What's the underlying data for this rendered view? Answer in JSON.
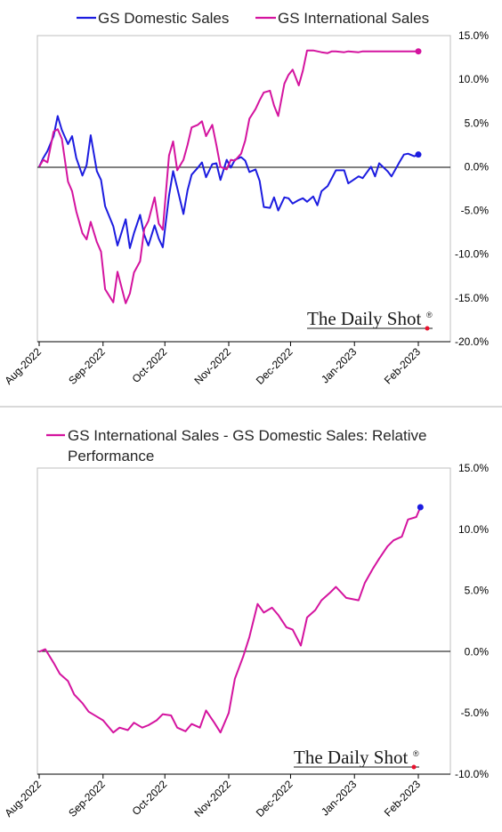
{
  "colors": {
    "domestic": "#1c1ce0",
    "international": "#d4149f",
    "axis": "#000000",
    "watermark_dot": "#e8112d"
  },
  "watermark": "The Daily Shot",
  "watermark_mark": "®",
  "chart_data": [
    {
      "type": "line",
      "legend": [
        "GS Domestic Sales",
        "GS International Sales"
      ],
      "x_ticks": [
        "Aug-2022",
        "Sep-2022",
        "Oct-2022",
        "Nov-2022",
        "Dec-2022",
        "Jan-2023",
        "Feb-2023"
      ],
      "y_ticks": [
        "15.0%",
        "10.0%",
        "5.0%",
        "0.0%",
        "-5.0%",
        "-10.0%",
        "-15.0%",
        "-20.0%"
      ],
      "ylim": [
        -20,
        15
      ],
      "grid": false,
      "legend_position": "top",
      "x": [
        "2022-08-01",
        "2022-08-03",
        "2022-08-05",
        "2022-08-08",
        "2022-08-10",
        "2022-08-12",
        "2022-08-15",
        "2022-08-17",
        "2022-08-19",
        "2022-08-22",
        "2022-08-24",
        "2022-08-26",
        "2022-08-29",
        "2022-08-31",
        "2022-09-02",
        "2022-09-06",
        "2022-09-08",
        "2022-09-12",
        "2022-09-14",
        "2022-09-16",
        "2022-09-19",
        "2022-09-21",
        "2022-09-23",
        "2022-09-26",
        "2022-09-28",
        "2022-09-30",
        "2022-10-03",
        "2022-10-05",
        "2022-10-07",
        "2022-10-10",
        "2022-10-12",
        "2022-10-14",
        "2022-10-17",
        "2022-10-19",
        "2022-10-21",
        "2022-10-24",
        "2022-10-26",
        "2022-10-28",
        "2022-10-31",
        "2022-11-02",
        "2022-11-04",
        "2022-11-07",
        "2022-11-09",
        "2022-11-11",
        "2022-11-14",
        "2022-11-16",
        "2022-11-18",
        "2022-11-21",
        "2022-11-23",
        "2022-11-25",
        "2022-11-28",
        "2022-11-30",
        "2022-12-02",
        "2022-12-05",
        "2022-12-07",
        "2022-12-09",
        "2022-12-12",
        "2022-12-14",
        "2022-12-16",
        "2022-12-19",
        "2022-12-21",
        "2022-12-23",
        "2022-12-27",
        "2022-12-29",
        "2023-01-03",
        "2023-01-05",
        "2023-01-09",
        "2023-01-11",
        "2023-01-13",
        "2023-01-17",
        "2023-01-19",
        "2023-01-23",
        "2023-01-25",
        "2023-01-27",
        "2023-01-30",
        "2023-02-01"
      ],
      "series": [
        {
          "name": "GS Domestic Sales",
          "values": [
            0.0,
            1.0,
            1.8,
            3.5,
            5.8,
            4.2,
            2.6,
            3.5,
            1.0,
            -1.0,
            0.2,
            3.6,
            -0.5,
            -1.5,
            -4.5,
            -6.8,
            -9.0,
            -6.0,
            -9.3,
            -7.6,
            -5.5,
            -7.8,
            -9.0,
            -6.7,
            -8.2,
            -9.2,
            -3.3,
            -0.5,
            -2.4,
            -5.4,
            -2.7,
            -0.9,
            -0.1,
            0.5,
            -1.2,
            0.3,
            0.4,
            -1.5,
            0.8,
            -0.1,
            0.8,
            1.1,
            0.7,
            -0.6,
            -0.3,
            -1.6,
            -4.6,
            -4.7,
            -3.5,
            -5.0,
            -3.5,
            -3.6,
            -4.2,
            -3.8,
            -3.6,
            -4.0,
            -3.4,
            -4.4,
            -2.8,
            -2.2,
            -1.3,
            -0.4,
            -0.4,
            -1.9,
            -1.1,
            -1.3,
            0.0,
            -1.1,
            0.4,
            -0.5,
            -1.1,
            0.6,
            1.4,
            1.5,
            1.2,
            1.4
          ]
        },
        {
          "name": "GS International Sales",
          "values": [
            0.0,
            0.8,
            0.5,
            4.0,
            4.3,
            3.2,
            -1.7,
            -2.8,
            -5.1,
            -7.6,
            -8.3,
            -6.3,
            -8.6,
            -9.7,
            -14.0,
            -15.5,
            -12.0,
            -15.6,
            -14.5,
            -12.1,
            -10.8,
            -7.1,
            -6.2,
            -3.5,
            -6.5,
            -7.2,
            1.3,
            2.9,
            -0.4,
            0.8,
            2.5,
            4.5,
            4.8,
            5.2,
            3.5,
            4.8,
            2.5,
            0.0,
            -0.3,
            0.8,
            0.7,
            1.5,
            3.0,
            5.5,
            6.6,
            7.6,
            8.5,
            8.7,
            7.0,
            5.8,
            9.5,
            10.5,
            11.1,
            9.3,
            11.0,
            13.3,
            13.3,
            13.2,
            13.1,
            13.0,
            13.2,
            13.2,
            13.1,
            13.2,
            13.1,
            13.2,
            13.2,
            13.2,
            13.2,
            13.2,
            13.2,
            13.2,
            13.2,
            13.2,
            13.2,
            13.2
          ]
        }
      ]
    },
    {
      "type": "line",
      "legend": [
        "GS International Sales - GS Domestic Sales:   Relative Performance"
      ],
      "x_ticks": [
        "Aug-2022",
        "Sep-2022",
        "Oct-2022",
        "Nov-2022",
        "Dec-2022",
        "Jan-2023",
        "Feb-2023"
      ],
      "y_ticks": [
        "15.0%",
        "10.0%",
        "5.0%",
        "0.0%",
        "-5.0%",
        "-10.0%"
      ],
      "ylim": [
        -10,
        15
      ],
      "grid": false,
      "legend_position": "top",
      "x": [
        "2022-08-01",
        "2022-08-04",
        "2022-08-08",
        "2022-08-11",
        "2022-08-15",
        "2022-08-18",
        "2022-08-22",
        "2022-08-25",
        "2022-08-29",
        "2022-09-01",
        "2022-09-06",
        "2022-09-09",
        "2022-09-13",
        "2022-09-16",
        "2022-09-20",
        "2022-09-23",
        "2022-09-27",
        "2022-09-30",
        "2022-10-04",
        "2022-10-07",
        "2022-10-11",
        "2022-10-14",
        "2022-10-18",
        "2022-10-21",
        "2022-10-25",
        "2022-10-28",
        "2022-11-01",
        "2022-11-04",
        "2022-11-08",
        "2022-11-11",
        "2022-11-15",
        "2022-11-18",
        "2022-11-22",
        "2022-11-25",
        "2022-11-29",
        "2022-12-02",
        "2022-12-06",
        "2022-12-09",
        "2022-12-13",
        "2022-12-16",
        "2022-12-20",
        "2022-12-23",
        "2022-12-28",
        "2023-01-03",
        "2023-01-06",
        "2023-01-10",
        "2023-01-13",
        "2023-01-17",
        "2023-01-20",
        "2023-01-24",
        "2023-01-27",
        "2023-01-31",
        "2023-02-02"
      ],
      "series": [
        {
          "name": "GS International Sales - GS Domestic Sales:   Relative Performance",
          "values": [
            0.0,
            0.2,
            -0.9,
            -1.8,
            -2.4,
            -3.5,
            -4.2,
            -4.9,
            -5.3,
            -5.6,
            -6.6,
            -6.2,
            -6.4,
            -5.8,
            -6.2,
            -6.0,
            -5.6,
            -5.1,
            -5.2,
            -6.2,
            -6.5,
            -5.9,
            -6.2,
            -4.8,
            -5.8,
            -6.6,
            -5.0,
            -2.2,
            -0.4,
            1.2,
            3.9,
            3.2,
            3.6,
            3.0,
            2.0,
            1.8,
            0.5,
            2.8,
            3.4,
            4.2,
            4.8,
            5.3,
            4.4,
            4.2,
            5.6,
            6.8,
            7.6,
            8.6,
            9.1,
            9.4,
            10.8,
            11.0,
            11.8
          ]
        }
      ]
    }
  ]
}
